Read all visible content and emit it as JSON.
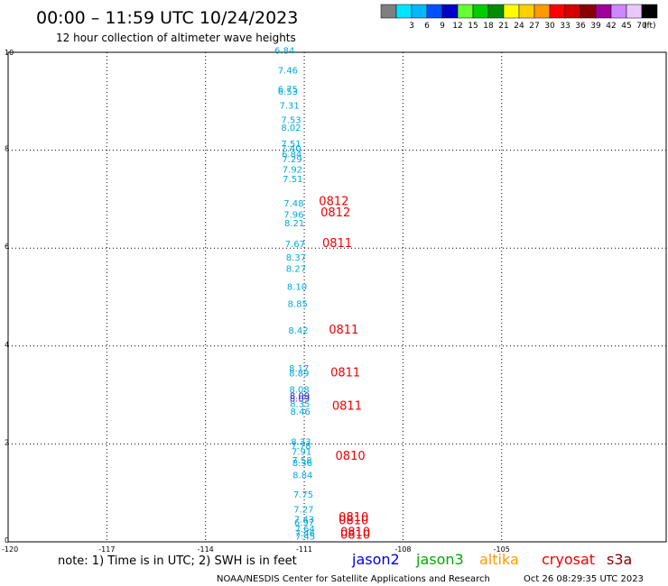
{
  "header": {
    "title": "00:00 – 11:59 UTC 10/24/2023",
    "subtitle": "12 hour collection of altimeter wave heights"
  },
  "colorbar": {
    "unit_label": "(ft)",
    "bins": [
      {
        "label": "",
        "color": "#7f7f7f"
      },
      {
        "label": "3",
        "color": "#00e5ff"
      },
      {
        "label": "6",
        "color": "#00b8ff"
      },
      {
        "label": "9",
        "color": "#0050ff"
      },
      {
        "label": "12",
        "color": "#0000c8"
      },
      {
        "label": "15",
        "color": "#66ff33"
      },
      {
        "label": "18",
        "color": "#00cc00"
      },
      {
        "label": "21",
        "color": "#008c00"
      },
      {
        "label": "24",
        "color": "#ffff00"
      },
      {
        "label": "27",
        "color": "#ffd000"
      },
      {
        "label": "30",
        "color": "#ff9900"
      },
      {
        "label": "33",
        "color": "#ff0000"
      },
      {
        "label": "36",
        "color": "#d40000"
      },
      {
        "label": "39",
        "color": "#8b0000"
      },
      {
        "label": "42",
        "color": "#a0009c"
      },
      {
        "label": "45",
        "color": "#cc88ff"
      },
      {
        "label": "70",
        "color": "#e8c8ff"
      },
      {
        "label": "",
        "color": "#000000"
      }
    ]
  },
  "legend": {
    "note": "note: 1) Time is in UTC; 2) SWH is in feet",
    "satellites": [
      {
        "name": "jason2",
        "color": "#0000dd"
      },
      {
        "name": "jason3",
        "color": "#00aa00"
      },
      {
        "name": "altika",
        "color": "#ff9900"
      },
      {
        "name": "cryosat",
        "color": "#ee0000"
      },
      {
        "name": "s3a",
        "color": "#880000"
      }
    ]
  },
  "footer": {
    "credit": "NOAA/NESDIS Center for Satellite Applications and Research",
    "timestamp": "Oct 26 08:29:35 UTC 2023"
  },
  "chart_data": {
    "type": "scatter",
    "title": "00:00 – 11:59 UTC 10/24/2023",
    "subtitle": "12 hour collection of altimeter wave heights",
    "xlim": [
      -120,
      -100
    ],
    "ylim": [
      0,
      10
    ],
    "x_ticks": [
      "-120",
      "-117",
      "-114",
      "-111",
      "-108",
      "-105"
    ],
    "x_tick_values": [
      -120,
      -117,
      -114,
      -111,
      -108,
      -105
    ],
    "y_ticks": [
      "0",
      "2",
      "4",
      "6",
      "8",
      "10"
    ],
    "y_tick_values": [
      0,
      2,
      4,
      6,
      8,
      10
    ],
    "grid": true,
    "series": [
      {
        "name": "jason2",
        "color": "#00aadd",
        "points": [
          {
            "lon": -111.6,
            "lat": 9.97,
            "label": "6.84"
          },
          {
            "lon": -111.5,
            "lat": 9.57,
            "label": "7.46"
          },
          {
            "lon": -111.5,
            "lat": 9.18,
            "label": "6.75"
          },
          {
            "lon": -111.5,
            "lat": 9.13,
            "label": "6.53"
          },
          {
            "lon": -111.45,
            "lat": 8.85,
            "label": "7.31"
          },
          {
            "lon": -111.4,
            "lat": 8.55,
            "label": "7.53"
          },
          {
            "lon": -111.4,
            "lat": 8.4,
            "label": "8.02"
          },
          {
            "lon": -111.4,
            "lat": 8.07,
            "label": "7.51"
          },
          {
            "lon": -111.4,
            "lat": 7.97,
            "label": "7.40"
          },
          {
            "lon": -111.38,
            "lat": 7.85,
            "label": "6.84"
          },
          {
            "lon": -111.37,
            "lat": 7.75,
            "label": "7.29"
          },
          {
            "lon": -111.36,
            "lat": 7.54,
            "label": "7.92"
          },
          {
            "lon": -111.35,
            "lat": 7.35,
            "label": "7.51"
          },
          {
            "lon": -111.32,
            "lat": 6.85,
            "label": "7.48"
          },
          {
            "lon": -111.32,
            "lat": 6.62,
            "label": "7.96"
          },
          {
            "lon": -111.3,
            "lat": 6.45,
            "label": "8.21"
          },
          {
            "lon": -111.28,
            "lat": 6.02,
            "label": "7.67"
          },
          {
            "lon": -111.25,
            "lat": 5.75,
            "label": "8.37"
          },
          {
            "lon": -111.25,
            "lat": 5.52,
            "label": "8.27"
          },
          {
            "lon": -111.22,
            "lat": 5.15,
            "label": "8.10"
          },
          {
            "lon": -111.2,
            "lat": 4.8,
            "label": "8.85"
          },
          {
            "lon": -111.18,
            "lat": 4.25,
            "label": "8.42"
          },
          {
            "lon": -111.16,
            "lat": 3.48,
            "label": "8.17"
          },
          {
            "lon": -111.16,
            "lat": 3.38,
            "label": "8.89"
          },
          {
            "lon": -111.15,
            "lat": 3.05,
            "label": "8.08"
          },
          {
            "lon": -111.13,
            "lat": 2.75,
            "label": "8.35"
          },
          {
            "lon": -111.12,
            "lat": 2.6,
            "label": "8.46"
          },
          {
            "lon": -111.1,
            "lat": 1.98,
            "label": "8.33"
          },
          {
            "lon": -111.1,
            "lat": 1.9,
            "label": "7.78"
          },
          {
            "lon": -111.08,
            "lat": 1.78,
            "label": "7.91"
          },
          {
            "lon": -111.07,
            "lat": 1.6,
            "label": "7.58"
          },
          {
            "lon": -111.06,
            "lat": 1.55,
            "label": "8.36"
          },
          {
            "lon": -111.05,
            "lat": 1.3,
            "label": "8.84"
          },
          {
            "lon": -111.03,
            "lat": 0.9,
            "label": "7.75"
          },
          {
            "lon": -111.02,
            "lat": 0.6,
            "label": "7.27"
          },
          {
            "lon": -111.0,
            "lat": 0.4,
            "label": "7.43"
          },
          {
            "lon": -111.0,
            "lat": 0.33,
            "label": "6.97"
          },
          {
            "lon": -110.98,
            "lat": 0.2,
            "label": "7.64"
          },
          {
            "lon": -110.98,
            "lat": 0.11,
            "label": "7.46"
          },
          {
            "lon": -110.97,
            "lat": 0.05,
            "label": "7.45"
          }
        ]
      },
      {
        "name": "jason2",
        "color": "#3030dd",
        "points": [
          {
            "lon": -111.14,
            "lat": 2.92,
            "label": "8.09"
          },
          {
            "lon": -111.14,
            "lat": 2.86,
            "label": "8.09"
          }
        ]
      },
      {
        "name": "cryosat",
        "color": "#ee0000",
        "points": [
          {
            "lon": -110.1,
            "lat": 6.88,
            "label": "0812"
          },
          {
            "lon": -110.05,
            "lat": 6.65,
            "label": "0812"
          },
          {
            "lon": -110.0,
            "lat": 6.02,
            "label": "0811"
          },
          {
            "lon": -109.8,
            "lat": 4.25,
            "label": "0811"
          },
          {
            "lon": -109.75,
            "lat": 3.38,
            "label": "0811"
          },
          {
            "lon": -109.7,
            "lat": 2.7,
            "label": "0811"
          },
          {
            "lon": -109.6,
            "lat": 1.68,
            "label": "0810"
          },
          {
            "lon": -109.5,
            "lat": 0.42,
            "label": "0810"
          },
          {
            "lon": -109.5,
            "lat": 0.36,
            "label": "0810"
          },
          {
            "lon": -109.45,
            "lat": 0.12,
            "label": "0810"
          },
          {
            "lon": -109.45,
            "lat": 0.06,
            "label": "0810"
          }
        ]
      }
    ]
  }
}
